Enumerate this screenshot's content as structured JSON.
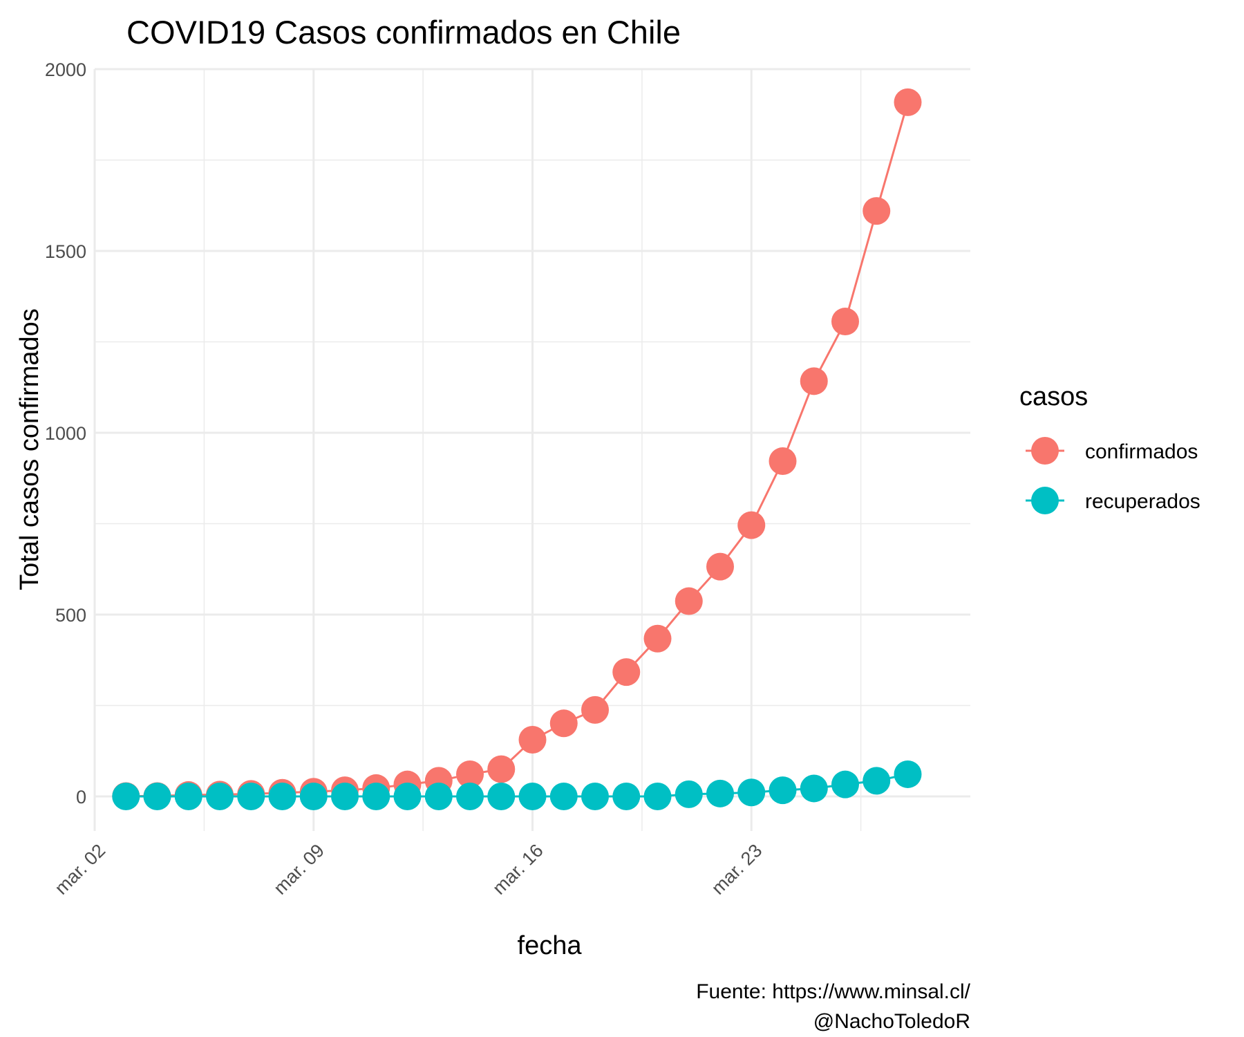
{
  "chart_data": {
    "type": "line",
    "title": "COVID19 Casos confirmados en Chile",
    "xlabel": "fecha",
    "ylabel": "Total casos confirmados",
    "caption": [
      "Fuente: https://www.minsal.cl/",
      "@NachoToledoR"
    ],
    "legend_title": "casos",
    "legend_position": "right",
    "grid": true,
    "x": [
      "2020-03-03",
      "2020-03-04",
      "2020-03-05",
      "2020-03-06",
      "2020-03-07",
      "2020-03-08",
      "2020-03-09",
      "2020-03-10",
      "2020-03-11",
      "2020-03-12",
      "2020-03-13",
      "2020-03-14",
      "2020-03-15",
      "2020-03-16",
      "2020-03-17",
      "2020-03-18",
      "2020-03-19",
      "2020-03-20",
      "2020-03-21",
      "2020-03-22",
      "2020-03-23",
      "2020-03-24",
      "2020-03-25",
      "2020-03-26",
      "2020-03-27",
      "2020-03-28"
    ],
    "xlim": [
      "2020-03-02",
      "2020-03-30"
    ],
    "x_ticks": [
      {
        "date": "2020-03-02",
        "label": "mar. 02"
      },
      {
        "date": "2020-03-09",
        "label": "mar. 09"
      },
      {
        "date": "2020-03-16",
        "label": "mar. 16"
      },
      {
        "date": "2020-03-23",
        "label": "mar. 23"
      }
    ],
    "y_ticks": [
      0,
      500,
      1000,
      1500,
      2000
    ],
    "ylim": [
      -95,
      2000
    ],
    "series": [
      {
        "name": "confirmados",
        "color": "#F8766D",
        "values": [
          1,
          1,
          4,
          5,
          7,
          10,
          13,
          17,
          23,
          33,
          43,
          61,
          75,
          156,
          201,
          238,
          342,
          434,
          537,
          632,
          746,
          922,
          1142,
          1306,
          1610,
          1909
        ]
      },
      {
        "name": "recuperados",
        "color": "#00BFC4",
        "values": [
          0,
          0,
          0,
          0,
          0,
          0,
          0,
          0,
          0,
          0,
          0,
          0,
          0,
          0,
          0,
          0,
          0,
          0,
          6,
          8,
          11,
          17,
          22,
          33,
          43,
          61
        ]
      }
    ]
  }
}
